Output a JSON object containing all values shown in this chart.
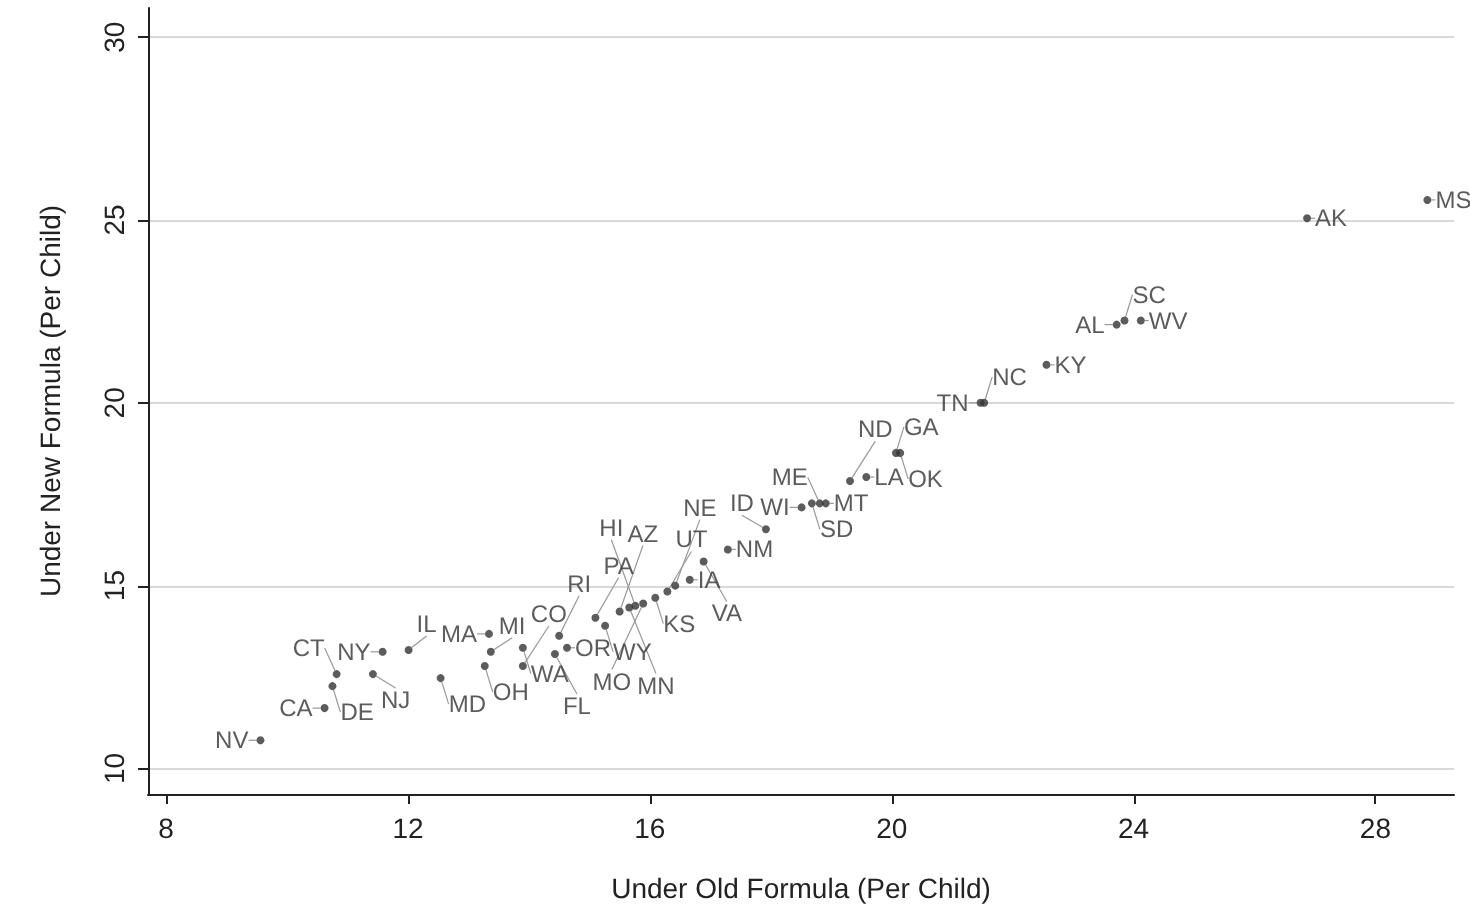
{
  "chart_data": {
    "type": "scatter",
    "xlabel": "Under Old Formula (Per Child)",
    "ylabel": "Under New Formula (Per Child)",
    "xlim": [
      7.7,
      29.3
    ],
    "ylim": [
      9.3,
      30.8
    ],
    "xticks": [
      8,
      12,
      16,
      20,
      24,
      28
    ],
    "yticks": [
      10,
      15,
      20,
      25,
      30
    ],
    "grid": "y",
    "marker": "circle",
    "x": [
      9.56,
      10.62,
      10.75,
      10.82,
      11.42,
      11.58,
      12.01,
      12.54,
      13.34,
      13.27,
      13.37,
      13.9,
      13.9,
      14.43,
      14.5,
      14.63,
      15.1,
      15.26,
      15.5,
      15.66,
      15.76,
      15.89,
      16.09,
      16.29,
      16.42,
      16.66,
      16.89,
      17.29,
      17.92,
      18.51,
      18.68,
      18.81,
      18.91,
      19.31,
      19.58,
      20.07,
      20.14,
      21.47,
      21.53,
      22.56,
      23.72,
      23.85,
      24.12,
      26.87,
      28.86
    ],
    "values": [
      10.77,
      11.65,
      12.25,
      12.58,
      12.58,
      13.19,
      13.24,
      12.47,
      13.68,
      12.8,
      13.19,
      13.3,
      12.8,
      13.13,
      13.63,
      13.3,
      14.12,
      13.9,
      14.29,
      14.4,
      14.45,
      14.51,
      14.67,
      14.84,
      15.0,
      15.16,
      15.66,
      15.99,
      16.54,
      17.14,
      17.25,
      17.25,
      17.25,
      17.86,
      17.97,
      18.63,
      18.63,
      20.0,
      20.0,
      21.04,
      22.14,
      22.25,
      22.25,
      25.05,
      25.55
    ],
    "value_labels": [
      "NV",
      "CA",
      "DE",
      "CT",
      "NJ",
      "NY",
      "IL",
      "MD",
      "MA",
      "OH",
      "MI",
      "WA",
      "CO",
      "FL",
      "RI",
      "OR",
      "PA",
      "WY",
      "AZ",
      "MN",
      "HI",
      "MO",
      "KS",
      "UT",
      "NE",
      "IA",
      "VA",
      "NM",
      "ID",
      "WI",
      "SD",
      "ME",
      "MT",
      "ND",
      "LA",
      "GA",
      "OK",
      "TN",
      "NC",
      "KY",
      "AL",
      "SC",
      "WV",
      "AK",
      "MS"
    ],
    "color": "#333333"
  }
}
